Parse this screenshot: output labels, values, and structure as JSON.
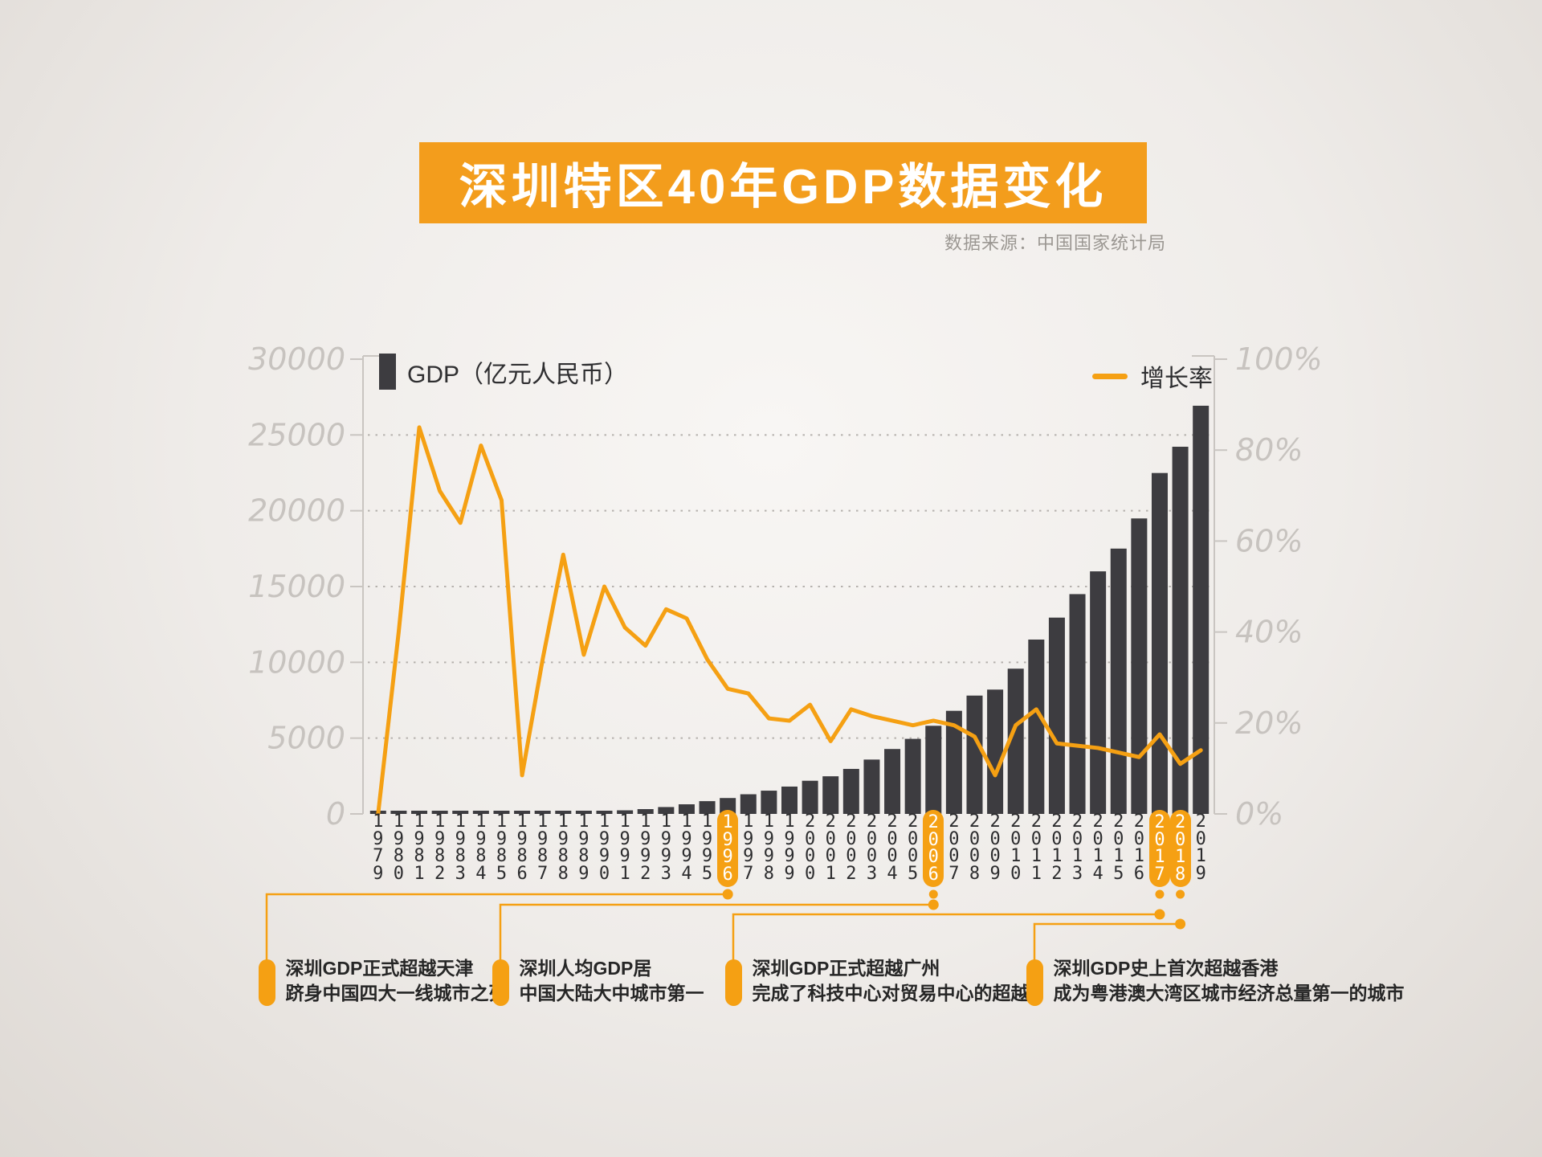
{
  "title": "深圳特区40年GDP数据变化",
  "source": "数据来源：中国国家统计局",
  "legend": {
    "bar_label": "GDP（亿元人民币）",
    "line_label": "增长率"
  },
  "colors": {
    "banner_orange": "#F39D1C",
    "accent_orange": "#F5A013",
    "bar_dark": "#3D3C40",
    "grid_gray": "#b5b1ad",
    "axis_gray": "#c9c5c1",
    "axis_label_gray": "#c7c3bf"
  },
  "axes": {
    "left_ticks": [
      "30000",
      "25000",
      "20000",
      "15000",
      "10000",
      "5000",
      "0"
    ],
    "right_ticks": [
      "100%",
      "80%",
      "60%",
      "40%",
      "20%",
      "0%"
    ],
    "left_max": 30000,
    "right_max": 100
  },
  "highlight_years": [
    "1996",
    "2006",
    "2017",
    "2018"
  ],
  "annotations": [
    {
      "year": "1996",
      "lines": [
        "深圳GDP正式超越天津",
        "跻身中国四大一线城市之列"
      ]
    },
    {
      "year": "2006",
      "lines": [
        "深圳人均GDP居",
        "中国大陆大中城市第一"
      ]
    },
    {
      "year": "2017",
      "lines": [
        "深圳GDP正式超越广州",
        "完成了科技中心对贸易中心的超越"
      ]
    },
    {
      "year": "2018",
      "lines": [
        "深圳GDP史上首次超越香港",
        "成为粤港澳大湾区城市经济总量第一的城市"
      ]
    }
  ],
  "chart_data": {
    "type": "bar+line",
    "title": "深圳特区40年GDP数据变化",
    "categories": [
      1979,
      1980,
      1981,
      1982,
      1983,
      1984,
      1985,
      1986,
      1987,
      1988,
      1989,
      1990,
      1991,
      1992,
      1993,
      1994,
      1995,
      1996,
      1997,
      1998,
      1999,
      2000,
      2001,
      2002,
      2003,
      2004,
      2005,
      2006,
      2007,
      2008,
      2009,
      2010,
      2011,
      2012,
      2013,
      2014,
      2015,
      2016,
      2017,
      2018,
      2019
    ],
    "series": [
      {
        "name": "GDP（亿元人民币）",
        "type": "bar",
        "axis": "left",
        "values": [
          1.96,
          2.7,
          4.95,
          8.2,
          13.1,
          23.4,
          39,
          41.7,
          55.9,
          87,
          115.9,
          171.7,
          236.7,
          317.3,
          453.1,
          634.7,
          842.8,
          1048.6,
          1297.4,
          1534.3,
          1804,
          2187.5,
          2482.5,
          2969.5,
          3585.7,
          4282.1,
          4950.9,
          5813.6,
          6801.6,
          7806.5,
          8201.2,
          9581.5,
          11502.1,
          12950.1,
          14500.2,
          16001.9,
          17502.9,
          19492.6,
          22490.1,
          24221.9,
          26927.1
        ]
      },
      {
        "name": "增长率",
        "type": "line",
        "axis": "right",
        "values": [
          0,
          40,
          85,
          71,
          64,
          81,
          69,
          8.5,
          34,
          57,
          35,
          50,
          41,
          37,
          45,
          43,
          34,
          27.5,
          26.5,
          21,
          20.5,
          24,
          16,
          23,
          21.5,
          20.5,
          19.5,
          20.5,
          19.5,
          17,
          8.5,
          19.5,
          23,
          15.5,
          15,
          14.5,
          13.5,
          12.5,
          17.5,
          11,
          14
        ]
      }
    ],
    "left_axis": {
      "label": "GDP（亿元人民币）",
      "range": [
        0,
        30000
      ]
    },
    "right_axis": {
      "label": "增长率",
      "range": [
        0,
        100
      ],
      "unit": "%"
    },
    "grid": "dotted horizontal at 5000 steps",
    "legend_position": "top inside plot, bar legend left / line legend right"
  }
}
